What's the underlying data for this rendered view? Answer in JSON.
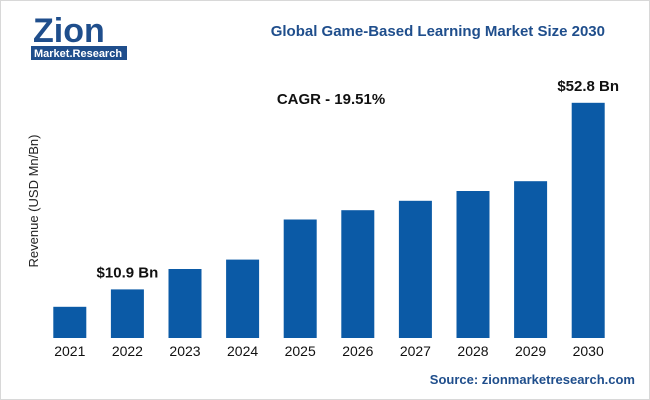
{
  "header": {
    "logo_text": "Zion",
    "logo_subtext": "Market.Research",
    "title": "Global Game-Based Learning Market Size 2030"
  },
  "footer": {
    "source": "Source: zionmarketresearch.com"
  },
  "chart_data": {
    "type": "bar",
    "title": "Global Game-Based Learning Market Size 2030",
    "xlabel": "",
    "ylabel": "Revenue (USD Mn/Bn)",
    "categories": [
      "2021",
      "2022",
      "2023",
      "2024",
      "2025",
      "2026",
      "2027",
      "2028",
      "2029",
      "2030"
    ],
    "values": [
      7.0,
      10.9,
      15.5,
      17.6,
      26.6,
      28.7,
      30.8,
      33.0,
      35.2,
      52.8
    ],
    "ylim": [
      0,
      55
    ],
    "grid": false,
    "bar_color": "#0b5aa6",
    "annotations": [
      {
        "text": "CAGR - 19.51%"
      },
      {
        "text": "$10.9 Bn",
        "category": "2022"
      },
      {
        "text": "$52.8 Bn",
        "category": "2030"
      }
    ]
  },
  "colors": {
    "bar": "#0b5aa6",
    "title": "#1f4e8c",
    "logo": "#1f4e8c",
    "logo_accent": "#ffffff"
  }
}
